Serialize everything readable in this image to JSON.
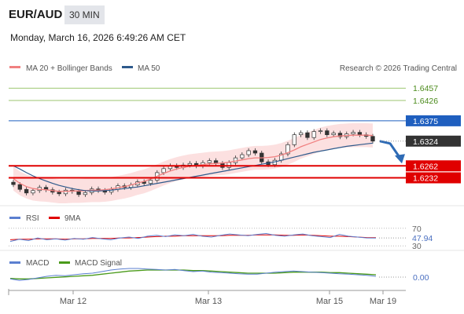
{
  "header": {
    "pair": "EUR/AUD",
    "timeframe": "30 MIN",
    "datetime": "Monday, March 16, 2026 6:49:26 AM CET"
  },
  "legend": {
    "ma20": "MA 20 + Bollinger Bands",
    "ma50": "MA 50",
    "credit": "Research © 2026 Trading Central",
    "rsi": "RSI",
    "rsi_ma": "9MA",
    "macd": "MACD",
    "macd_signal": "MACD Signal"
  },
  "colors": {
    "ma20": "#f08080",
    "ma50": "#2e5a8c",
    "bands_fill": "#fbd5d5",
    "resistance": "#7cb342",
    "pivot": "#1f5fbf",
    "support": "#e00000",
    "current": "#333333",
    "macd": "#5b7fd0",
    "macd_signal": "#4a9a1a",
    "rsi": "#5b7fd0",
    "rsi_ma": "#e00000"
  },
  "levels": [
    {
      "name": "resistance-2",
      "value": 1.6457,
      "label": "1.6457",
      "kind": "resistance"
    },
    {
      "name": "resistance-1",
      "value": 1.6426,
      "label": "1.6426",
      "kind": "resistance"
    },
    {
      "name": "pivot",
      "value": 1.6375,
      "label": "1.6375",
      "kind": "pivot"
    },
    {
      "name": "current-price",
      "value": 1.6324,
      "label": "1.6324",
      "kind": "current"
    },
    {
      "name": "support-1",
      "value": 1.6262,
      "label": "1.6262",
      "kind": "support"
    },
    {
      "name": "support-2",
      "value": 1.6232,
      "label": "1.6232",
      "kind": "support"
    }
  ],
  "rsi_panel": {
    "levels": [
      {
        "value": 70,
        "label": "70"
      },
      {
        "value": 30,
        "label": "30"
      }
    ],
    "current": {
      "value": 47.94,
      "label": "47.94"
    },
    "ylim": [
      25,
      75
    ]
  },
  "macd_panel": {
    "current": {
      "value": 0.0,
      "label": "0.00"
    }
  },
  "chart_data": {
    "type": "line",
    "title": "",
    "x_ticks": [
      "Mar 12",
      "Mar 13",
      "Mar 15",
      "Mar 19"
    ],
    "ylim": [
      1.617,
      1.6485
    ],
    "price": [
      1.6215,
      1.6203,
      1.6194,
      1.62,
      1.6208,
      1.6202,
      1.6196,
      1.6192,
      1.6201,
      1.6198,
      1.619,
      1.6195,
      1.6204,
      1.62,
      1.6196,
      1.6203,
      1.6212,
      1.6208,
      1.6214,
      1.6222,
      1.6218,
      1.6226,
      1.6245,
      1.6255,
      1.6262,
      1.6258,
      1.6264,
      1.6268,
      1.6262,
      1.627,
      1.6275,
      1.6268,
      1.6258,
      1.627,
      1.6282,
      1.629,
      1.63,
      1.6294,
      1.6272,
      1.6265,
      1.6276,
      1.6292,
      1.6315,
      1.634,
      1.6345,
      1.6333,
      1.6348,
      1.635,
      1.634,
      1.6344,
      1.6335,
      1.6342,
      1.6346,
      1.634,
      1.6336,
      1.6324
    ],
    "ma20": [
      1.623,
      1.6218,
      1.621,
      1.6205,
      1.6203,
      1.6202,
      1.62,
      1.6198,
      1.6198,
      1.6199,
      1.6199,
      1.62,
      1.6201,
      1.6201,
      1.6202,
      1.6204,
      1.6207,
      1.621,
      1.6214,
      1.6219,
      1.6223,
      1.6229,
      1.6236,
      1.6243,
      1.6249,
      1.6254,
      1.6258,
      1.6261,
      1.6263,
      1.6265,
      1.6267,
      1.6268,
      1.6269,
      1.6271,
      1.6274,
      1.6277,
      1.628,
      1.6282,
      1.6282,
      1.6283,
      1.6285,
      1.6289,
      1.6295,
      1.6302,
      1.631,
      1.6316,
      1.6322,
      1.6328,
      1.6332,
      1.6335,
      1.6337,
      1.6338,
      1.6339,
      1.6339,
      1.6339,
      1.6338
    ],
    "ma50": [
      1.6262,
      1.6254,
      1.6245,
      1.6237,
      1.623,
      1.6224,
      1.6218,
      1.6213,
      1.6209,
      1.6205,
      1.6202,
      1.62,
      1.6199,
      1.6199,
      1.62,
      1.6201,
      1.6203,
      1.6205,
      1.6207,
      1.6209,
      1.6212,
      1.6215,
      1.6218,
      1.6221,
      1.6224,
      1.6227,
      1.623,
      1.6233,
      1.6236,
      1.6239,
      1.6242,
      1.6245,
      1.6248,
      1.6251,
      1.6254,
      1.6257,
      1.626,
      1.6263,
      1.6266,
      1.6269,
      1.6272,
      1.6276,
      1.628,
      1.6284,
      1.6288,
      1.6292,
      1.6296,
      1.6299,
      1.6302,
      1.6305,
      1.6308,
      1.6311,
      1.6313,
      1.6315,
      1.6317,
      1.6319
    ],
    "band_width": 0.003,
    "forecast": [
      1.6324,
      1.6268
    ],
    "rsi": [
      40,
      45,
      42,
      48,
      44,
      46,
      43,
      47,
      45,
      49,
      46,
      44,
      48,
      50,
      47,
      52,
      54,
      51,
      55,
      53,
      56,
      52,
      50,
      54,
      57,
      55,
      53,
      56,
      58,
      54,
      52,
      55,
      57,
      53,
      51,
      49,
      56,
      52,
      50,
      48,
      47.94
    ],
    "rsi_ma": [
      44,
      45,
      45,
      46,
      46,
      46,
      45,
      46,
      46,
      47,
      47,
      47,
      48,
      48,
      49,
      50,
      51,
      52,
      52,
      53,
      53,
      53,
      53,
      53,
      54,
      54,
      54,
      55,
      55,
      55,
      54,
      54,
      55,
      54,
      53,
      52,
      52,
      51,
      50,
      49,
      48.5
    ],
    "macd": [
      -0.0005,
      -0.0008,
      -0.0006,
      -0.0003,
      0.0,
      0.0002,
      0.0001,
      0.0003,
      0.0005,
      0.0006,
      0.0009,
      0.0012,
      0.0014,
      0.0015,
      0.0015,
      0.0014,
      0.0013,
      0.0012,
      0.0013,
      0.0011,
      0.0009,
      0.001,
      0.0008,
      0.0007,
      0.0006,
      0.0005,
      0.0004,
      0.0004,
      0.0006,
      0.0008,
      0.0009,
      0.001,
      0.0009,
      0.0008,
      0.0007,
      0.0006,
      0.0005,
      0.0004,
      0.0003,
      0.0002,
      0.0
    ],
    "macd_signal": [
      -0.0004,
      -0.0005,
      -0.0005,
      -0.0004,
      -0.0003,
      -0.0002,
      -0.0001,
      0.0,
      0.0001,
      0.0002,
      0.0004,
      0.0006,
      0.0008,
      0.001,
      0.0011,
      0.0012,
      0.0012,
      0.0012,
      0.0012,
      0.0012,
      0.0011,
      0.0011,
      0.001,
      0.0009,
      0.0008,
      0.0007,
      0.0006,
      0.0006,
      0.0006,
      0.0006,
      0.0007,
      0.0008,
      0.0008,
      0.0008,
      0.0008,
      0.0007,
      0.0007,
      0.0006,
      0.0005,
      0.0004,
      0.0003
    ]
  }
}
